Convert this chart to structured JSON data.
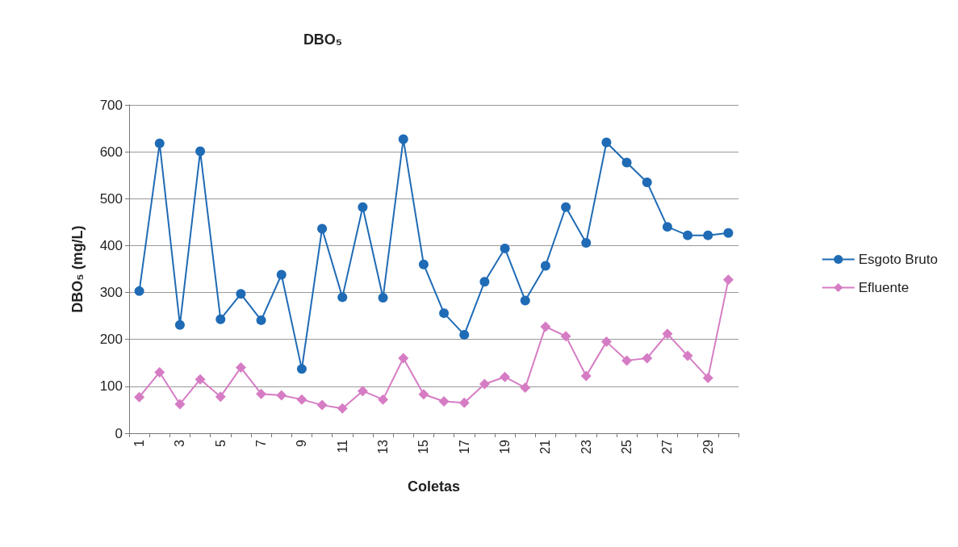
{
  "chart_data": {
    "type": "line",
    "title": "DBO₅",
    "xlabel": "Coletas",
    "ylabel": "DBO₅ (mg/L)",
    "categories": [
      "1",
      null,
      "3",
      null,
      "5",
      null,
      "7",
      null,
      "9",
      null,
      "11",
      null,
      "13",
      null,
      "15",
      null,
      "17",
      null,
      "19",
      null,
      "21",
      null,
      "23",
      null,
      "25",
      null,
      "27",
      null,
      "29",
      null
    ],
    "series": [
      {
        "name": "Esgoto Bruto",
        "color": "#1f6bb5",
        "marker": "circle",
        "values": [
          303,
          618,
          231,
          601,
          243,
          297,
          241,
          338,
          137,
          436,
          290,
          482,
          289,
          627,
          360,
          256,
          210,
          323,
          394,
          283,
          357,
          482,
          406,
          620,
          577,
          535,
          440,
          422,
          422,
          427
        ]
      },
      {
        "name": "Efluente",
        "color": "#d67cc4",
        "marker": "diamond",
        "values": [
          77,
          130,
          62,
          115,
          78,
          140,
          84,
          81,
          72,
          60,
          53,
          90,
          72,
          160,
          83,
          68,
          65,
          105,
          120,
          97,
          227,
          207,
          122,
          195,
          155,
          160,
          212,
          165,
          118,
          327
        ]
      }
    ],
    "ylim": [
      0,
      700
    ],
    "yticks": [
      0,
      100,
      200,
      300,
      400,
      500,
      600,
      700
    ],
    "grid": "y",
    "legend": "right"
  }
}
